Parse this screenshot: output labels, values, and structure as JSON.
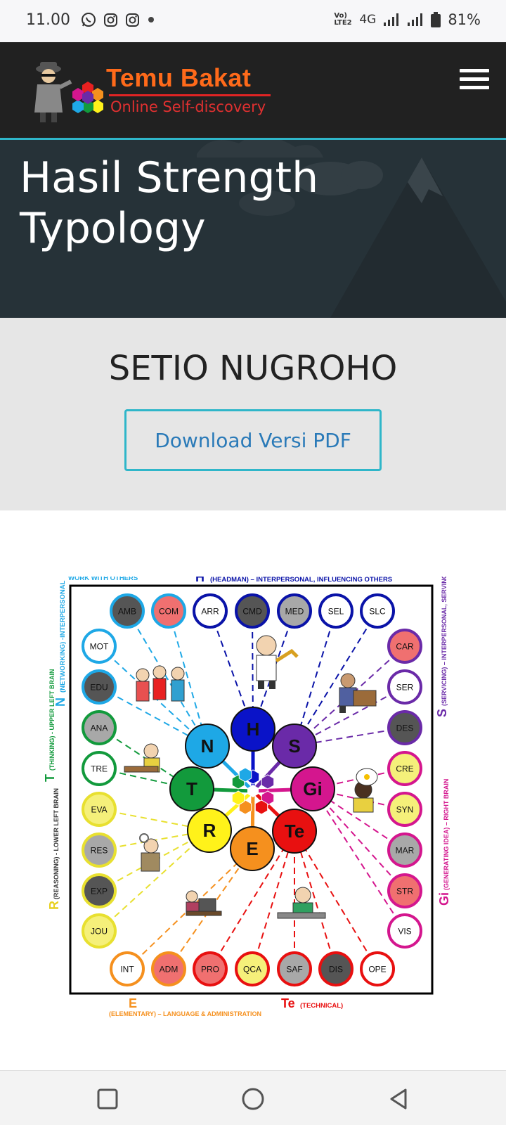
{
  "status": {
    "time": "11.00",
    "network_label": "Vo) LTE2",
    "net_type": "4G",
    "battery": "81%"
  },
  "header": {
    "brand_title": "Temu Bakat",
    "brand_subtitle": "Online Self-discovery"
  },
  "hero": {
    "title_line1": "Hasil Strength",
    "title_line2": "Typology"
  },
  "profile": {
    "name": "SETIO NUGROHO",
    "download_label": "Download Versi PDF"
  },
  "diagram": {
    "top_left_label": "WORK WITH OTHERS",
    "top_label_letter": "H",
    "top_label_text": "(HEADMAN) – INTERPERSONAL, INFLUENCING OTHERS",
    "left_n_letter": "N",
    "left_n_text": "(NETWORKING) -INTERPERSONAL",
    "left_t_letter": "T",
    "left_t_text": "(THINKING) - UPPER LEFT BRAIN",
    "left_r_letter": "R",
    "left_r_text": "(REASONING) - LOWER LEFT BRAIN",
    "right_s_letter": "S",
    "right_s_text": "(SERVICING) – INTERPERSONAL, SERVING OTHERS",
    "right_gi_letter": "Gi",
    "right_gi_text": "(GENERATING IDEA) – RIGHT BRAIN",
    "bottom_e_letter": "E",
    "bottom_e_text": "(ELEMENTARY) – LANGUAGE & ADMINISTRATION",
    "bottom_te_letter": "Te",
    "bottom_te_text": "(TECHNICAL)",
    "center_nodes": [
      {
        "label": "H",
        "color": "#0a13c8"
      },
      {
        "label": "S",
        "color": "#6a2aa8"
      },
      {
        "label": "Gi",
        "color": "#d4168e"
      },
      {
        "label": "Te",
        "color": "#e81010"
      },
      {
        "label": "E",
        "color": "#f5901e"
      },
      {
        "label": "R",
        "color": "#fff21a"
      },
      {
        "label": "T",
        "color": "#129a3c"
      },
      {
        "label": "N",
        "color": "#1ea8e6"
      }
    ],
    "top_row": [
      {
        "code": "AMB",
        "fill": "#555555",
        "ring": "#1ea8e6"
      },
      {
        "code": "COM",
        "fill": "#f07070",
        "ring": "#1ea8e6"
      },
      {
        "code": "ARR",
        "fill": "#ffffff",
        "ring": "#0a13a8"
      },
      {
        "code": "CMD",
        "fill": "#555555",
        "ring": "#0a13a8"
      },
      {
        "code": "MED",
        "fill": "#a8a8a8",
        "ring": "#0a13a8"
      },
      {
        "code": "SEL",
        "fill": "#ffffff",
        "ring": "#0a13a8"
      },
      {
        "code": "SLC",
        "fill": "#ffffff",
        "ring": "#0a13a8"
      }
    ],
    "left_col": [
      {
        "code": "MOT",
        "fill": "#ffffff",
        "ring": "#1ea8e6"
      },
      {
        "code": "EDU",
        "fill": "#555555",
        "ring": "#1ea8e6"
      },
      {
        "code": "ANA",
        "fill": "#a8a8a8",
        "ring": "#129a3c"
      },
      {
        "code": "TRE",
        "fill": "#ffffff",
        "ring": "#129a3c"
      },
      {
        "code": "EVA",
        "fill": "#f5f07a",
        "ring": "#e8e030"
      },
      {
        "code": "RES",
        "fill": "#a8a8a8",
        "ring": "#e8e030"
      },
      {
        "code": "EXP",
        "fill": "#555555",
        "ring": "#e8e030"
      },
      {
        "code": "JOU",
        "fill": "#f5f07a",
        "ring": "#e8e030"
      }
    ],
    "right_col": [
      {
        "code": "CAR",
        "fill": "#f07070",
        "ring": "#6a2aa8"
      },
      {
        "code": "SER",
        "fill": "#ffffff",
        "ring": "#6a2aa8"
      },
      {
        "code": "DES",
        "fill": "#555555",
        "ring": "#6a2aa8"
      },
      {
        "code": "CRE",
        "fill": "#f5f07a",
        "ring": "#d4168e"
      },
      {
        "code": "SYN",
        "fill": "#f5f07a",
        "ring": "#d4168e"
      },
      {
        "code": "MAR",
        "fill": "#a8a8a8",
        "ring": "#d4168e"
      },
      {
        "code": "STR",
        "fill": "#f07070",
        "ring": "#d4168e"
      },
      {
        "code": "VIS",
        "fill": "#ffffff",
        "ring": "#d4168e"
      }
    ],
    "bottom_row": [
      {
        "code": "INT",
        "fill": "#ffffff",
        "ring": "#f5901e"
      },
      {
        "code": "ADM",
        "fill": "#f07070",
        "ring": "#f5901e"
      },
      {
        "code": "PRO",
        "fill": "#f07070",
        "ring": "#e81010"
      },
      {
        "code": "QCA",
        "fill": "#f5f07a",
        "ring": "#e81010"
      },
      {
        "code": "SAF",
        "fill": "#a8a8a8",
        "ring": "#e81010"
      },
      {
        "code": "DIS",
        "fill": "#555555",
        "ring": "#e81010"
      },
      {
        "code": "OPE",
        "fill": "#ffffff",
        "ring": "#e81010"
      }
    ]
  }
}
